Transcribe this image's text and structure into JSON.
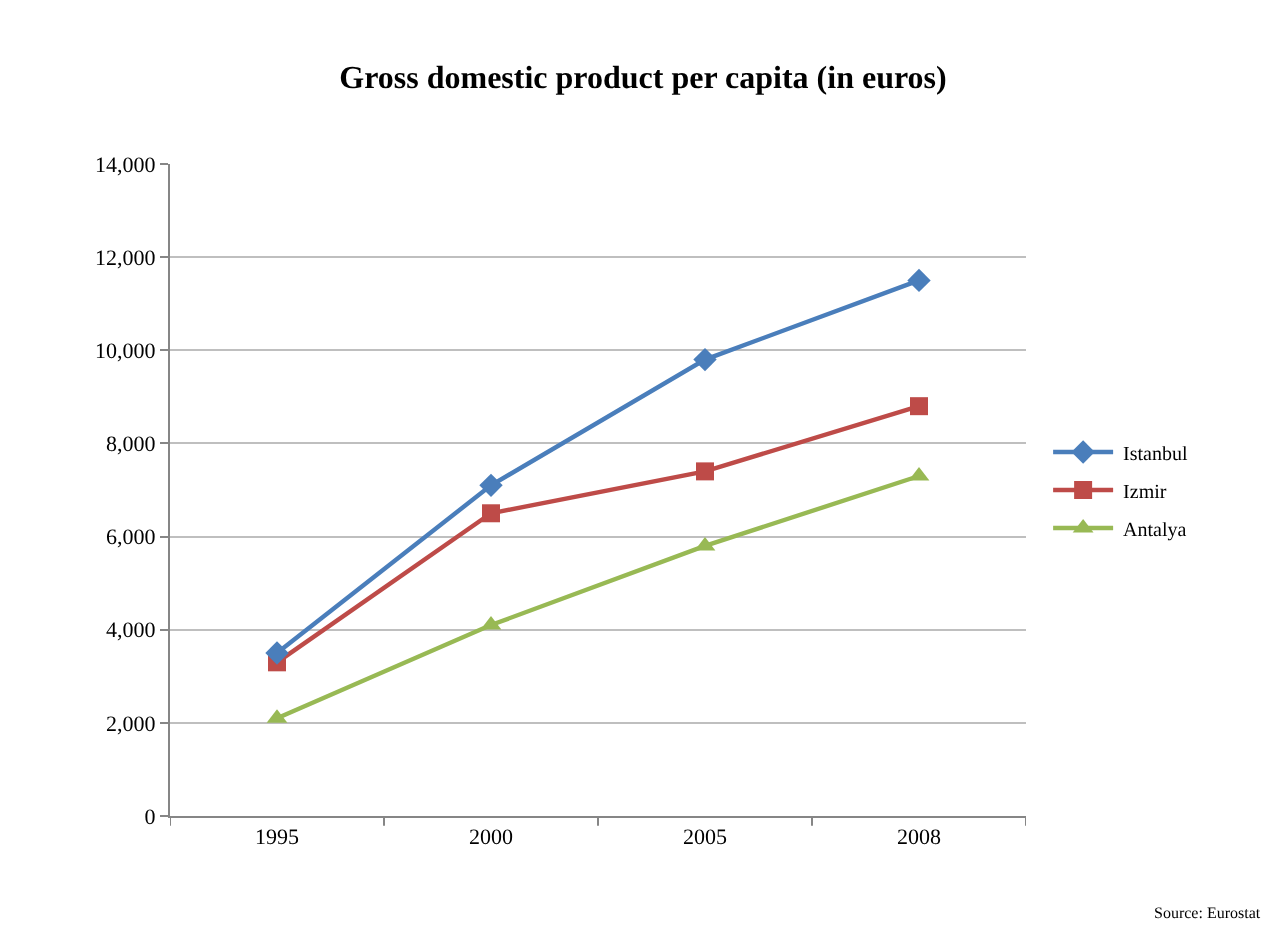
{
  "chart_data": {
    "type": "line",
    "title": "Gross domestic product per capita (in euros)",
    "categories": [
      "1995",
      "2000",
      "2005",
      "2008"
    ],
    "series": [
      {
        "name": "Istanbul",
        "color": "#4a7ebb",
        "values": [
          3500,
          7100,
          9800,
          11500
        ],
        "marker": "diamond"
      },
      {
        "name": "Izmir",
        "color": "#be4b48",
        "values": [
          3300,
          6500,
          7400,
          8800
        ],
        "marker": "square"
      },
      {
        "name": "Antalya",
        "color": "#98b954",
        "values": [
          2100,
          4100,
          5800,
          7300
        ],
        "marker": "triangle"
      }
    ],
    "ylim": [
      0,
      14000
    ],
    "yticks": [
      {
        "value": 0,
        "label": "0"
      },
      {
        "value": 2000,
        "label": "2,000"
      },
      {
        "value": 4000,
        "label": "4,000"
      },
      {
        "value": 6000,
        "label": "6,000"
      },
      {
        "value": 8000,
        "label": "8,000"
      },
      {
        "value": 10000,
        "label": "10,000"
      },
      {
        "value": 12000,
        "label": "12,000"
      },
      {
        "value": 14000,
        "label": "14,000"
      }
    ],
    "grid": "y",
    "legend": "right",
    "line_style": "solid",
    "annotations": [
      "Source: Eurostat"
    ]
  }
}
